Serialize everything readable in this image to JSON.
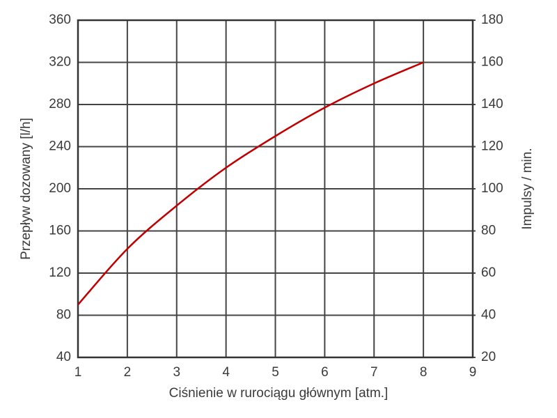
{
  "chart_data": {
    "type": "line",
    "xlabel": "Ciśnienie w rurociągu głównym [atm.]",
    "ylabel": "Przepływ dozowany [l/h]",
    "y2label": "Impulsy / min.",
    "x": [
      1,
      2,
      3,
      4,
      5,
      6,
      7,
      8
    ],
    "values": [
      90,
      143,
      184,
      220,
      250,
      277,
      300,
      320
    ],
    "color": "#c00000",
    "xlim": [
      1,
      9
    ],
    "xticks": [
      1,
      2,
      3,
      4,
      5,
      6,
      7,
      8,
      9
    ],
    "ylim": [
      40,
      360
    ],
    "yticks": [
      40,
      80,
      120,
      160,
      200,
      240,
      280,
      320,
      360
    ],
    "y2lim": [
      20,
      180
    ],
    "y2ticks": [
      20,
      40,
      60,
      80,
      100,
      120,
      140,
      160,
      180
    ],
    "grid": true
  }
}
